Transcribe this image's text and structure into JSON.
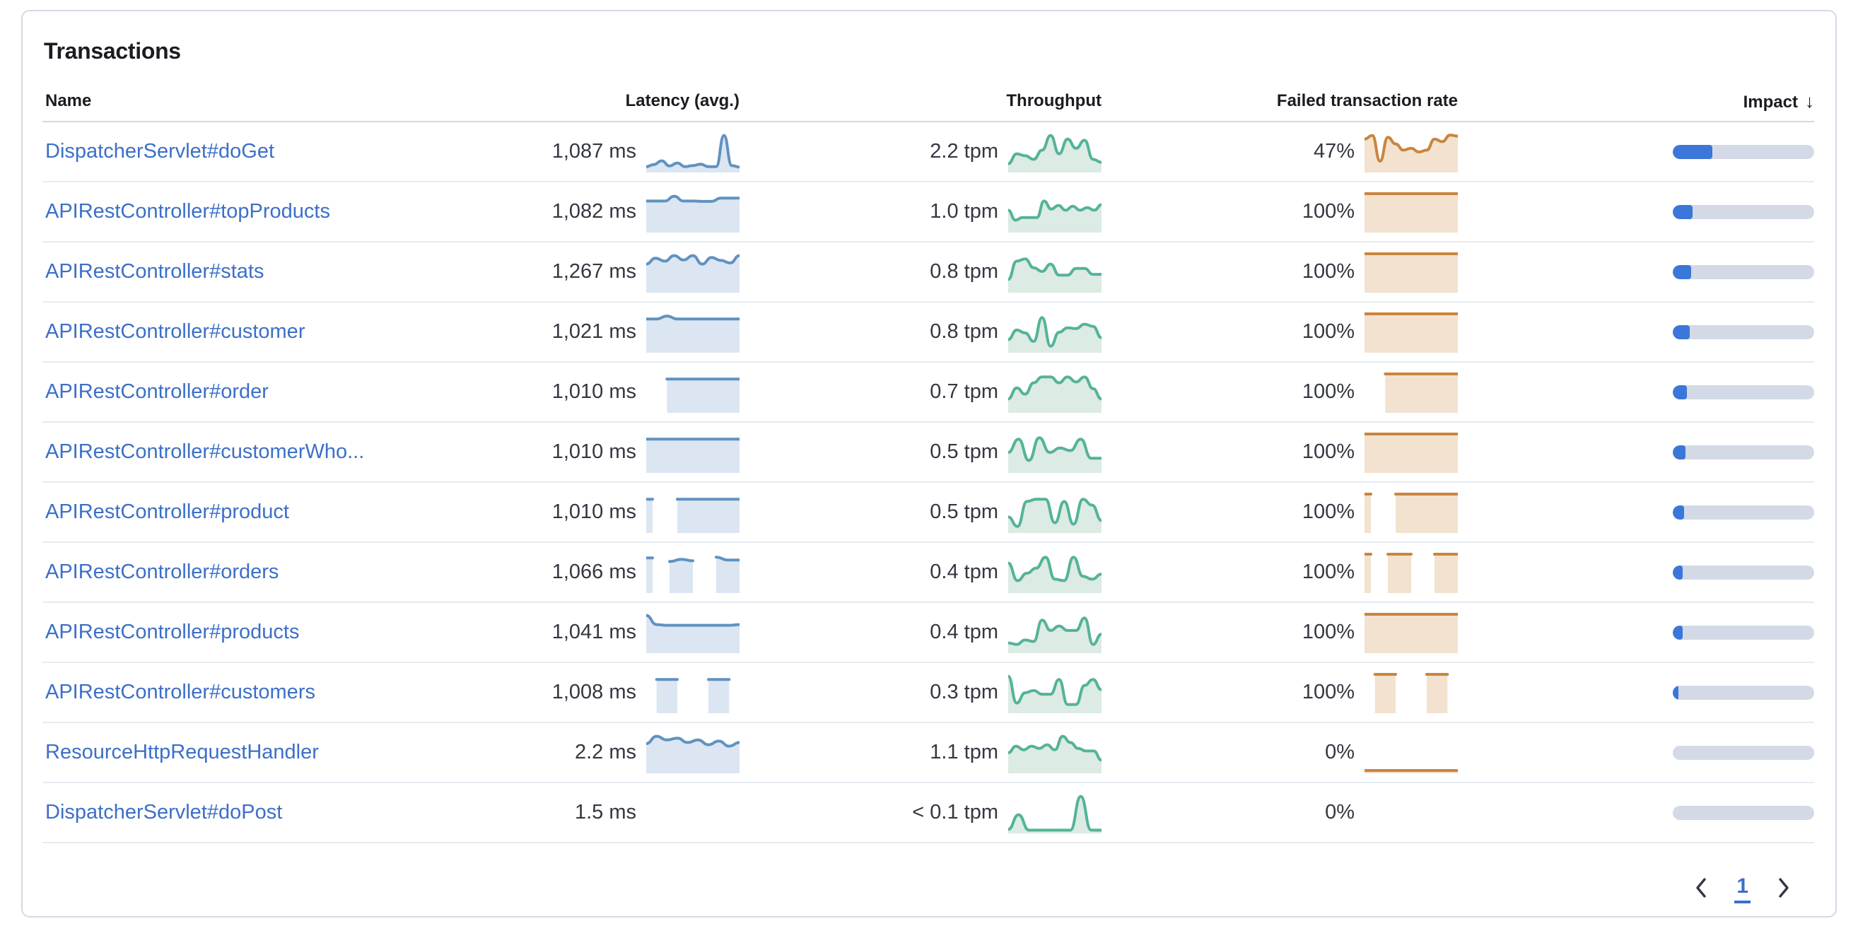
{
  "panel": {
    "title": "Transactions"
  },
  "table": {
    "columns": [
      {
        "label": "Name"
      },
      {
        "label": "Latency (avg.)"
      },
      {
        "label": "Throughput"
      },
      {
        "label": "Failed transaction rate"
      },
      {
        "label": "Impact",
        "sort": "descending"
      }
    ],
    "rows": [
      {
        "name": "DispatcherServlet#doGet",
        "latency": "1,087 ms",
        "throughput": "2.2 tpm",
        "failed_rate": "47%",
        "impact_pct": 28,
        "latency_spark": [
          0.1,
          0.16,
          0.26,
          0.12,
          0.2,
          0.1,
          0.13,
          0.17,
          0.1,
          0.1,
          0.95,
          0.13,
          0.09
        ],
        "throughput_spark": [
          0.18,
          0.45,
          0.4,
          0.3,
          0.55,
          0.95,
          0.45,
          0.85,
          0.6,
          0.82,
          0.3,
          0.22
        ],
        "failed_spark": [
          0.85,
          0.95,
          0.25,
          0.9,
          0.72,
          0.55,
          0.6,
          0.5,
          0.55,
          0.85,
          0.78,
          0.96,
          0.93
        ]
      },
      {
        "name": "APIRestController#topProducts",
        "latency": "1,082 ms",
        "throughput": "1.0 tpm",
        "failed_rate": "100%",
        "impact_pct": 14,
        "latency_spark": [
          0.8,
          0.8,
          0.8,
          0.93,
          0.8,
          0.8,
          0.79,
          0.79,
          0.88,
          0.88,
          0.88
        ],
        "throughput_spark": [
          0.55,
          0.28,
          0.35,
          0.35,
          0.35,
          0.8,
          0.58,
          0.68,
          0.55,
          0.66,
          0.55,
          0.62,
          0.55,
          0.7
        ],
        "failed_spark": [
          1,
          1,
          1,
          1,
          1,
          1,
          1,
          1,
          1,
          1
        ]
      },
      {
        "name": "APIRestController#stats",
        "latency": "1,267 ms",
        "throughput": "0.8 tpm",
        "failed_rate": "100%",
        "impact_pct": 13,
        "latency_spark": [
          0.72,
          0.88,
          0.8,
          0.95,
          0.83,
          0.95,
          0.72,
          0.9,
          0.82,
          0.75,
          0.95
        ],
        "throughput_spark": [
          0.3,
          0.8,
          0.86,
          0.62,
          0.52,
          0.72,
          0.42,
          0.42,
          0.6,
          0.6,
          0.44,
          0.44
        ],
        "failed_spark": [
          1,
          1,
          1,
          1,
          1,
          1,
          1,
          1,
          1,
          1
        ]
      },
      {
        "name": "APIRestController#customer",
        "latency": "1,021 ms",
        "throughput": "0.8 tpm",
        "failed_rate": "100%",
        "impact_pct": 12,
        "latency_spark": [
          0.86,
          0.86,
          0.94,
          0.86,
          0.86,
          0.86,
          0.86,
          0.86,
          0.86,
          0.86
        ],
        "throughput_spark": [
          0.3,
          0.56,
          0.48,
          0.25,
          0.9,
          0.12,
          0.5,
          0.62,
          0.6,
          0.72,
          0.66,
          0.35
        ],
        "failed_spark": [
          1,
          1,
          1,
          1,
          1,
          1,
          1,
          1,
          1,
          1
        ]
      },
      {
        "name": "APIRestController#order",
        "latency": "1,010 ms",
        "throughput": "0.7 tpm",
        "failed_rate": "100%",
        "impact_pct": 10,
        "latency_spark": [
          null,
          null,
          0.86,
          0.86,
          0.86,
          0.86,
          0.86,
          0.86,
          0.86,
          0.86
        ],
        "throughput_spark": [
          0.32,
          0.62,
          0.45,
          0.76,
          0.92,
          0.92,
          0.76,
          0.92,
          0.78,
          0.92,
          0.6,
          0.32
        ],
        "failed_spark": [
          null,
          null,
          1,
          1,
          1,
          1,
          1,
          1,
          1,
          1
        ]
      },
      {
        "name": "APIRestController#customerWho...",
        "latency": "1,010 ms",
        "throughput": "0.5 tpm",
        "failed_rate": "100%",
        "impact_pct": 9,
        "latency_spark": [
          0.86,
          0.86,
          0.86,
          0.86,
          0.86,
          0.86,
          0.86,
          0.86,
          0.86,
          0.86
        ],
        "throughput_spark": [
          0.5,
          0.86,
          0.28,
          0.9,
          0.5,
          0.62,
          0.55,
          0.86,
          0.34,
          0.34
        ],
        "failed_spark": [
          1,
          1,
          1,
          1,
          1,
          1,
          1,
          1,
          1,
          1
        ]
      },
      {
        "name": "APIRestController#product",
        "latency": "1,010 ms",
        "throughput": "0.5 tpm",
        "failed_rate": "100%",
        "impact_pct": 8,
        "latency_spark": [
          0.86,
          null,
          null,
          0.86,
          0.86,
          0.86,
          0.86,
          0.86,
          0.86,
          0.86
        ],
        "throughput_spark": [
          0.38,
          0.12,
          0.8,
          0.86,
          0.86,
          0.22,
          0.8,
          0.18,
          0.86,
          0.7,
          0.28
        ],
        "failed_spark": [
          1,
          null,
          null,
          1,
          1,
          1,
          1,
          1,
          1,
          1
        ]
      },
      {
        "name": "APIRestController#orders",
        "latency": "1,066 ms",
        "throughput": "0.4 tpm",
        "failed_rate": "100%",
        "impact_pct": 7,
        "latency_spark": [
          0.9,
          null,
          0.8,
          0.86,
          0.82,
          null,
          0.92,
          0.84,
          0.84
        ],
        "throughput_spark": [
          0.76,
          0.28,
          0.48,
          0.62,
          0.92,
          0.32,
          0.28,
          0.92,
          0.4,
          0.32,
          0.46
        ],
        "failed_spark": [
          1,
          null,
          1,
          1,
          1,
          null,
          1,
          1,
          1
        ]
      },
      {
        "name": "APIRestController#products",
        "latency": "1,041 ms",
        "throughput": "0.4 tpm",
        "failed_rate": "100%",
        "impact_pct": 7,
        "latency_spark": [
          0.97,
          0.72,
          0.7,
          0.7,
          0.7,
          0.7,
          0.7,
          0.7,
          0.7,
          0.72
        ],
        "throughput_spark": [
          0.22,
          0.18,
          0.3,
          0.26,
          0.84,
          0.56,
          0.68,
          0.56,
          0.56,
          0.9,
          0.18,
          0.46
        ],
        "failed_spark": [
          1,
          1,
          1,
          1,
          1,
          1,
          1,
          1,
          1,
          1
        ]
      },
      {
        "name": "APIRestController#customers",
        "latency": "1,008 ms",
        "throughput": "0.3 tpm",
        "failed_rate": "100%",
        "impact_pct": 4,
        "latency_spark": [
          null,
          0.86,
          0.86,
          0.86,
          null,
          null,
          0.86,
          0.86,
          0.86,
          null
        ],
        "throughput_spark": [
          0.95,
          0.22,
          0.5,
          0.56,
          0.46,
          0.46,
          0.86,
          0.18,
          0.18,
          0.7,
          0.86,
          0.58
        ],
        "failed_spark": [
          null,
          1,
          1,
          1,
          null,
          null,
          1,
          1,
          1,
          null
        ]
      },
      {
        "name": "ResourceHttpRequestHandler",
        "latency": "2.2 ms",
        "throughput": "1.1 tpm",
        "failed_rate": "0%",
        "impact_pct": 0,
        "latency_spark": [
          0.75,
          0.95,
          0.85,
          0.9,
          0.78,
          0.85,
          0.72,
          0.82,
          0.68,
          0.78
        ],
        "throughput_spark": [
          0.5,
          0.68,
          0.58,
          0.68,
          0.62,
          0.72,
          0.58,
          0.95,
          0.78,
          0.62,
          0.55,
          0.55,
          0.3
        ],
        "failed_spark": [
          0.02,
          0.02,
          0.02,
          0.02,
          0.02,
          0.02,
          0.02,
          0.02
        ]
      },
      {
        "name": "DispatcherServlet#doPost",
        "latency": "1.5 ms",
        "throughput": "< 0.1 tpm",
        "failed_rate": "0%",
        "impact_pct": 0,
        "latency_spark": [],
        "throughput_spark": [
          0.05,
          0.45,
          0.03,
          0.03,
          0.03,
          0.03,
          0.03,
          0.95,
          0.03,
          0.03
        ],
        "failed_spark": []
      }
    ]
  },
  "pagination": {
    "current_page": "1"
  },
  "icons": {
    "sort_descending": "↓",
    "chevron_left": "‹",
    "chevron_right": "›"
  },
  "colors": {
    "link": "#3C6FC8",
    "text": "#343741",
    "header_text": "#1A1C21",
    "latency_line": "#6092C0",
    "latency_fill": "#DCE6F2",
    "throughput_line": "#54B399",
    "throughput_fill": "#DCEBE4",
    "failed_line": "#C9853E",
    "failed_fill": "#F3E2CF",
    "impact_fill": "#3B76D9",
    "impact_track": "#D3DAE6",
    "row_border": "#E6EBF3",
    "card_border": "#D3DAE6"
  }
}
